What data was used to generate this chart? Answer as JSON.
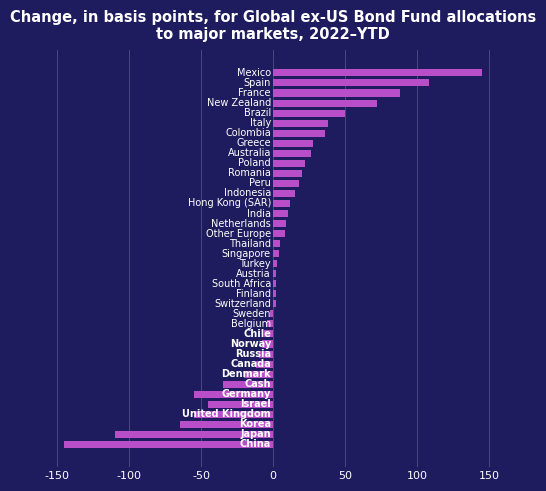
{
  "title": "Change, in basis points, for Global ex-US Bond Fund allocations\nto major markets, 2022–YTD",
  "categories": [
    "Mexico",
    "Spain",
    "France",
    "New Zealand",
    "Brazil",
    "Italy",
    "Colombia",
    "Greece",
    "Australia",
    "Poland",
    "Romania",
    "Peru",
    "Indonesia",
    "Hong Kong (SAR)",
    "India",
    "Netherlands",
    "Other Europe",
    "Thailand",
    "Singapore",
    "Turkey",
    "Austria",
    "South Africa",
    "Finland",
    "Switzerland",
    "Sweden",
    "Belgium",
    "Chile",
    "Norway",
    "Russia",
    "Canada",
    "Denmark",
    "Cash",
    "Germany",
    "Israel",
    "United Kingdom",
    "Korea",
    "Japan",
    "China"
  ],
  "values": [
    145,
    108,
    88,
    72,
    50,
    38,
    36,
    28,
    26,
    22,
    20,
    18,
    15,
    12,
    10,
    9,
    8,
    5,
    4,
    3,
    2,
    2,
    2,
    2,
    -2,
    -4,
    -6,
    -8,
    -10,
    -12,
    -20,
    -35,
    -55,
    -45,
    -55,
    -65,
    -110,
    -145
  ],
  "bar_color": "#b84fc8",
  "background_color": "#1e1b5e",
  "text_color": "#ffffff",
  "grid_color": "#4a4880",
  "xlim": [
    -165,
    165
  ],
  "xticks": [
    -150,
    -100,
    -50,
    0,
    50,
    100,
    150
  ],
  "title_fontsize": 10.5,
  "label_fontsize": 7.0,
  "bold_labels": [
    "Chile",
    "Norway",
    "Russia",
    "Canada",
    "Denmark",
    "Cash",
    "Germany",
    "Israel",
    "United Kingdom",
    "Korea",
    "Japan",
    "China"
  ]
}
